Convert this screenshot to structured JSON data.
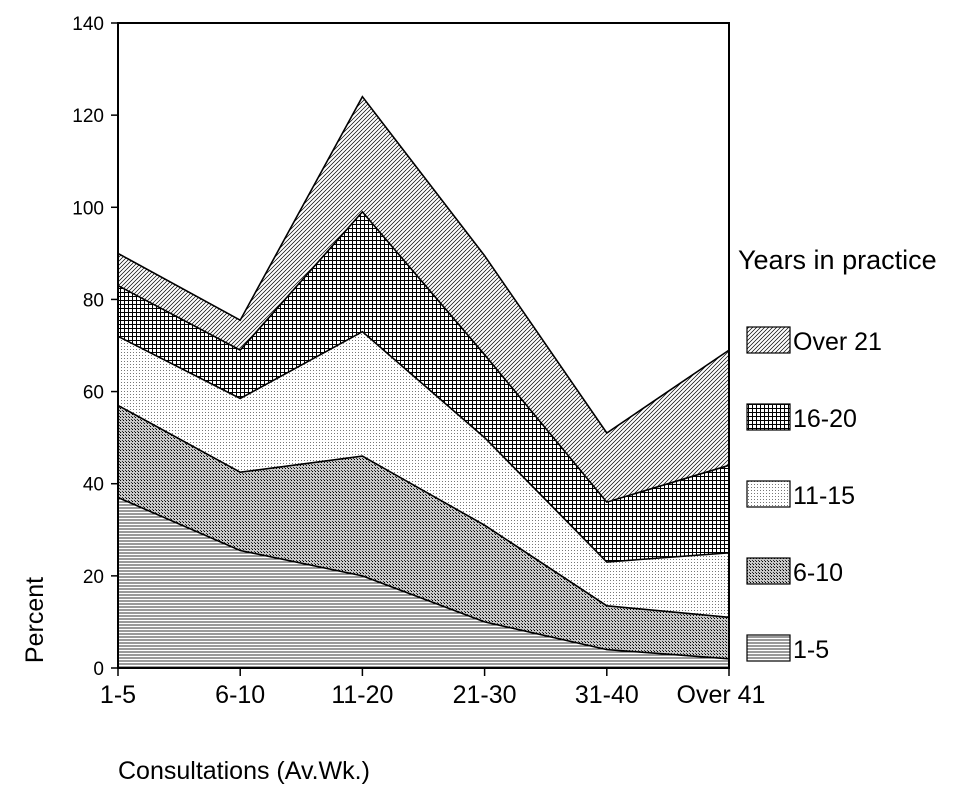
{
  "chart_data": {
    "type": "area",
    "stacked": true,
    "categories": [
      "1-5",
      "6-10",
      "11-20",
      "21-30",
      "31-40",
      "Over 41"
    ],
    "ylim": [
      0,
      140
    ],
    "yticks": [
      0,
      20,
      40,
      60,
      80,
      100,
      120,
      140
    ],
    "xlabel": "Consultations (Av.Wk.)",
    "ylabel": "Percent",
    "legend_title": "Years in practice",
    "legend_position": "right",
    "grid": false,
    "series": [
      {
        "name": "1-5",
        "pattern": "horizontal-lines",
        "values": [
          37,
          25.5,
          20,
          10,
          4,
          2
        ]
      },
      {
        "name": "6-10",
        "pattern": "dense-dots",
        "values": [
          20,
          17,
          26,
          21,
          9.5,
          9
        ]
      },
      {
        "name": "11-15",
        "pattern": "light-dots",
        "values": [
          15,
          16,
          27,
          19,
          9.5,
          14
        ]
      },
      {
        "name": "16-20",
        "pattern": "crosshatch",
        "values": [
          11,
          10.5,
          26,
          18,
          13,
          19
        ]
      },
      {
        "name": "Over 21",
        "pattern": "diagonal-lines",
        "values": [
          7,
          6.5,
          25,
          21.5,
          15,
          25
        ]
      }
    ]
  }
}
